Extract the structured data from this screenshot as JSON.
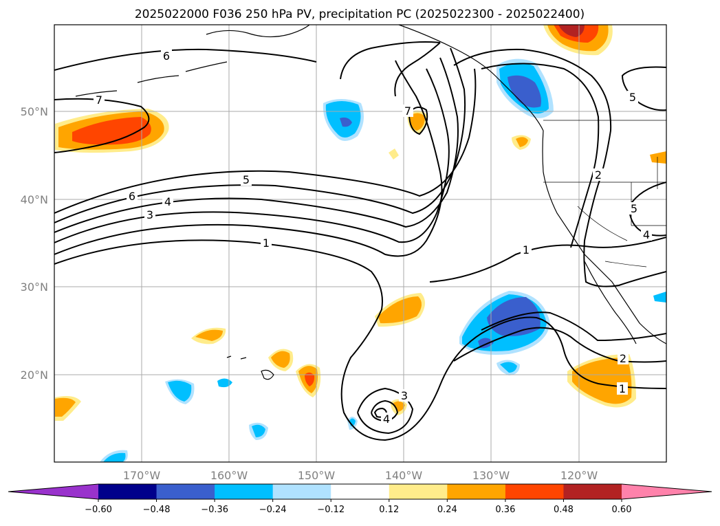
{
  "title": "2025022000 F036 250 hPa PV, precipitation PC (2025022300 - 2025022400)",
  "lon_labels": [
    "170°W",
    "160°W",
    "150°W",
    "140°W",
    "130°W",
    "120°W"
  ],
  "lat_labels": [
    "50°N",
    "40°N",
    "30°N",
    "20°N"
  ],
  "colorbar": {
    "tick_labels": [
      "−0.60",
      "−0.48",
      "−0.36",
      "−0.24",
      "−0.12",
      "0.12",
      "0.24",
      "0.36",
      "0.48",
      "0.60"
    ],
    "colors": [
      "#9932cc",
      "#00008b",
      "#3a5fcd",
      "#00bfff",
      "#b0e2ff",
      "#ffffff",
      "#ffec8b",
      "#ffa500",
      "#ff4500",
      "#b22222",
      "#ff82ab"
    ]
  },
  "contour_labels": [
    "6",
    "7",
    "5",
    "6",
    "4",
    "3",
    "1",
    "7",
    "1",
    "2",
    "5",
    "4",
    "5",
    "2",
    "1",
    "3",
    "4"
  ],
  "colors": {
    "land": "#ffffff",
    "ocean": "#ffffff",
    "grid": "#aaaaaa",
    "contour": "#000000"
  }
}
